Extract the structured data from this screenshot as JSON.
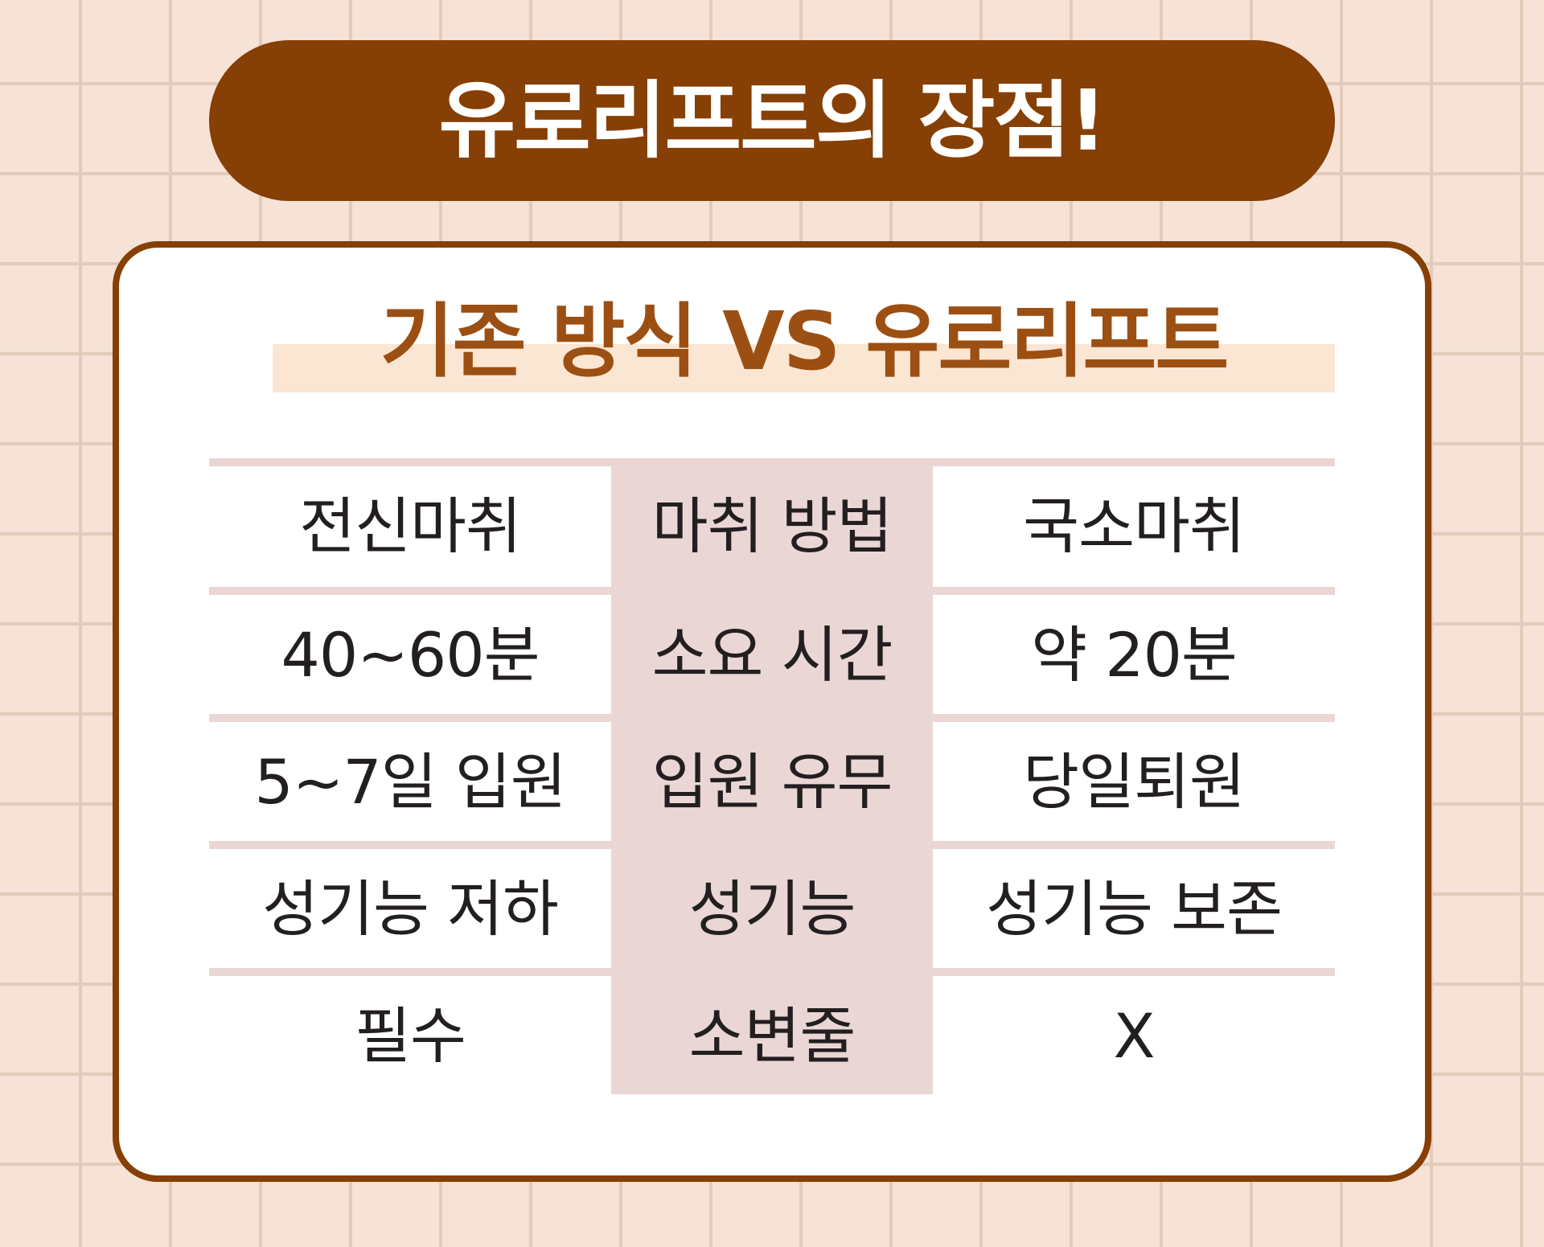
{
  "title": "유로리프트의 장점!",
  "subtitle": "기존 방식 VS 유로리프트",
  "colors": {
    "brown": "#863f04",
    "subtitle_text": "#9c4f12",
    "highlight": "#fbe6d3",
    "background": "#f6e2d6",
    "table_accent": "#ead7d5"
  },
  "table": {
    "rows": [
      {
        "existing": "전신마취",
        "category": "마취 방법",
        "eurolift": "국소마취"
      },
      {
        "existing": "40~60분",
        "category": "소요 시간",
        "eurolift": "약 20분"
      },
      {
        "existing": "5~7일 입원",
        "category": "입원 유무",
        "eurolift": "당일퇴원"
      },
      {
        "existing": "성기능 저하",
        "category": "성기능",
        "eurolift": "성기능 보존"
      },
      {
        "existing": "필수",
        "category": "소변줄",
        "eurolift": "X"
      }
    ]
  }
}
